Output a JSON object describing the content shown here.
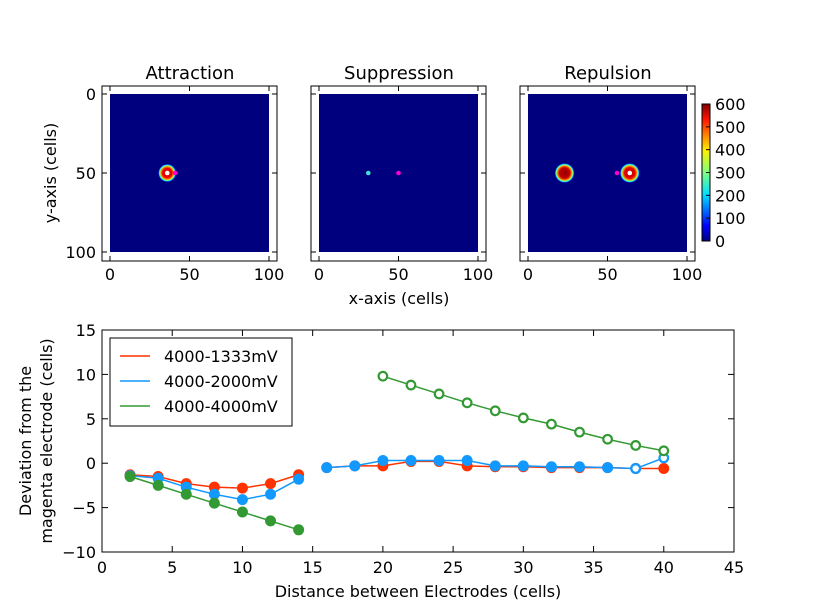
{
  "chart_data": [
    {
      "type": "heatmap",
      "title": "Attraction",
      "ylabel": "y-axis (cells)",
      "xlim": [
        0,
        100
      ],
      "ylim": [
        0,
        100
      ],
      "x_ticks": [
        "0",
        "50",
        "100"
      ],
      "y_ticks": [
        "0",
        "50",
        "100"
      ],
      "background_value": 0,
      "blobs": [
        {
          "x": 36,
          "y": 50,
          "radius": 5.5,
          "value": 560
        }
      ],
      "markers": [
        {
          "x": 36,
          "y": 50,
          "color": "#ffffff"
        },
        {
          "x": 41,
          "y": 50,
          "color": "#ff00cc"
        }
      ]
    },
    {
      "type": "heatmap",
      "title": "Suppression",
      "xlabel": "x-axis (cells)",
      "xlim": [
        0,
        100
      ],
      "ylim": [
        0,
        100
      ],
      "x_ticks": [
        "0",
        "50",
        "100"
      ],
      "background_value": 0,
      "blobs": [],
      "markers": [
        {
          "x": 31,
          "y": 50,
          "color": "#40e0d0"
        },
        {
          "x": 50,
          "y": 50,
          "color": "#ff00cc"
        }
      ]
    },
    {
      "type": "heatmap",
      "title": "Repulsion",
      "xlim": [
        0,
        100
      ],
      "ylim": [
        0,
        100
      ],
      "x_ticks": [
        "0",
        "50",
        "100"
      ],
      "background_value": 0,
      "blobs": [
        {
          "x": 23,
          "y": 50,
          "radius": 6,
          "value": 590
        },
        {
          "x": 64,
          "y": 50,
          "radius": 6,
          "value": 570
        }
      ],
      "markers": [
        {
          "x": 64,
          "y": 50,
          "color": "#ffffff"
        },
        {
          "x": 56,
          "y": 50,
          "color": "#ff00cc"
        }
      ],
      "colorbar": {
        "min": 0,
        "max": 600,
        "ticks": [
          "0",
          "100",
          "200",
          "300",
          "400",
          "500",
          "600"
        ],
        "colormap": "jet"
      }
    },
    {
      "type": "line",
      "xlabel": "Distance between Electrodes (cells)",
      "ylabel_lines": [
        "Deviation from the",
        "magenta electrode (cells)"
      ],
      "xlim": [
        0,
        45
      ],
      "ylim": [
        -10,
        15
      ],
      "x_ticks": [
        "0",
        "5",
        "10",
        "15",
        "20",
        "25",
        "30",
        "35",
        "40",
        "45"
      ],
      "y_ticks": [
        "−10",
        "−5",
        "0",
        "5",
        "10",
        "15"
      ],
      "legend_position": "top-left",
      "series": [
        {
          "name": "4000-1333mV",
          "color": "#ff3300",
          "segments": [
            {
              "marker": "filled",
              "points": [
                [
                  2,
                  -1.3
                ],
                [
                  4,
                  -1.5
                ],
                [
                  6,
                  -2.3
                ],
                [
                  8,
                  -2.7
                ],
                [
                  10,
                  -2.8
                ],
                [
                  12,
                  -2.3
                ],
                [
                  14,
                  -1.3
                ]
              ]
            },
            {
              "marker": "filled",
              "points": [
                [
                  16,
                  -0.5
                ],
                [
                  18,
                  -0.3
                ],
                [
                  20,
                  -0.3
                ],
                [
                  22,
                  0.2
                ],
                [
                  24,
                  0.2
                ],
                [
                  26,
                  -0.3
                ],
                [
                  28,
                  -0.4
                ],
                [
                  30,
                  -0.4
                ],
                [
                  32,
                  -0.5
                ],
                [
                  34,
                  -0.5
                ],
                [
                  36,
                  -0.5
                ],
                [
                  38,
                  -0.6
                ],
                [
                  40,
                  -0.6
                ]
              ]
            }
          ]
        },
        {
          "name": "4000-2000mV",
          "color": "#1199ff",
          "segments": [
            {
              "marker": "filled",
              "points": [
                [
                  2,
                  -1.4
                ],
                [
                  4,
                  -1.7
                ],
                [
                  6,
                  -2.7
                ],
                [
                  8,
                  -3.5
                ],
                [
                  10,
                  -4.1
                ],
                [
                  12,
                  -3.5
                ],
                [
                  14,
                  -1.8
                ]
              ]
            },
            {
              "marker": "filled",
              "points": [
                [
                  16,
                  -0.5
                ],
                [
                  18,
                  -0.3
                ],
                [
                  20,
                  0.3
                ],
                [
                  22,
                  0.3
                ],
                [
                  24,
                  0.3
                ],
                [
                  26,
                  0.3
                ],
                [
                  28,
                  -0.3
                ],
                [
                  30,
                  -0.3
                ],
                [
                  32,
                  -0.4
                ],
                [
                  34,
                  -0.4
                ],
                [
                  36,
                  -0.5
                ],
                [
                  38,
                  -0.6
                ]
              ]
            },
            {
              "marker": "open",
              "points": [
                [
                  38,
                  -0.6
                ],
                [
                  40,
                  0.6
                ]
              ]
            }
          ]
        },
        {
          "name": "4000-4000mV",
          "color": "#339933",
          "segments": [
            {
              "marker": "filled",
              "points": [
                [
                  2,
                  -1.5
                ],
                [
                  4,
                  -2.5
                ],
                [
                  6,
                  -3.5
                ],
                [
                  8,
                  -4.5
                ],
                [
                  10,
                  -5.5
                ],
                [
                  12,
                  -6.5
                ],
                [
                  14,
                  -7.5
                ]
              ]
            },
            {
              "marker": "open",
              "points": [
                [
                  20,
                  9.8
                ],
                [
                  22,
                  8.8
                ],
                [
                  24,
                  7.8
                ],
                [
                  26,
                  6.8
                ],
                [
                  28,
                  5.9
                ],
                [
                  30,
                  5.1
                ],
                [
                  32,
                  4.4
                ],
                [
                  34,
                  3.5
                ],
                [
                  36,
                  2.7
                ],
                [
                  38,
                  2.0
                ],
                [
                  40,
                  1.4
                ]
              ]
            }
          ]
        }
      ]
    }
  ]
}
